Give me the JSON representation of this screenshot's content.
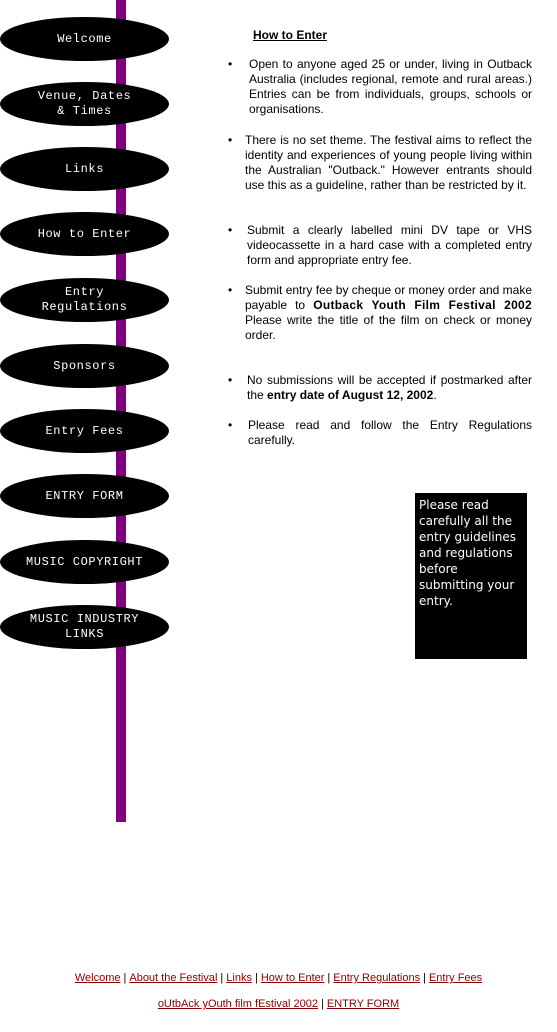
{
  "nav": [
    {
      "label": "Welcome"
    },
    {
      "label": "Venue, Dates\n& Times"
    },
    {
      "label": "Links"
    },
    {
      "label": "How to Enter"
    },
    {
      "label": "Entry\nRegulations"
    },
    {
      "label": "Sponsors"
    },
    {
      "label": "Entry Fees"
    },
    {
      "label": "ENTRY FORM"
    },
    {
      "label": "MUSIC COPYRIGHT"
    },
    {
      "label": "MUSIC INDUSTRY\nLINKS"
    }
  ],
  "main": {
    "heading": "How to Enter",
    "bullet_glyph": "•",
    "b1": "Open to anyone aged 25 or under, living in Outback Australia (includes regional, remote and rural areas.)  Entries can be from individuals, groups, schools or organisations.",
    "b2": "There is no set theme.  The festival aims to reflect the identity and experiences of young people living within the Australian \"Outback.\" However entrants should use this as a guideline, rather than be restricted by it.",
    "b3": "Submit a clearly labelled mini DV tape or VHS videocassette  in a hard case with a completed entry form and appropriate entry fee.",
    "b4_pre": "Submit entry fee by cheque or money order and make payable to",
    "b4_bold": "Outback Youth Film Festival 2002",
    "b4_post": "Please write the title of the film on check or money order.",
    "b5_pre": "No submissions will be accepted if postmarked after the",
    "b5_bold": "entry date of August 12, 2002",
    "b5_post": ".",
    "b6": "Please read and follow the Entry Regulations carefully."
  },
  "notice": "Please read carefully all the entry guidelines and regulations before submitting your entry.",
  "footer": {
    "row1": [
      "Welcome",
      "About the Festival",
      "Links",
      "How to Enter",
      "Entry Regulations",
      "Entry Fees"
    ],
    "row2": [
      "oUtbAck yOuth film fEstival 2002",
      "ENTRY FORM"
    ],
    "separator": "|"
  }
}
